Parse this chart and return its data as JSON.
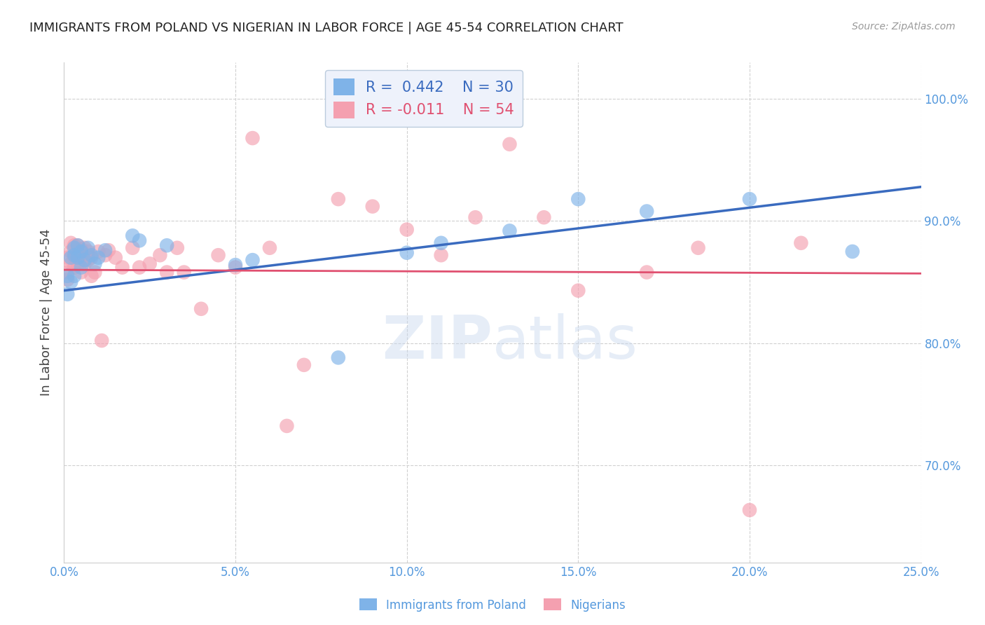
{
  "title": "IMMIGRANTS FROM POLAND VS NIGERIAN IN LABOR FORCE | AGE 45-54 CORRELATION CHART",
  "source": "Source: ZipAtlas.com",
  "ylabel": "In Labor Force | Age 45-54",
  "xlim": [
    0.0,
    0.25
  ],
  "ylim": [
    0.62,
    1.03
  ],
  "xtick_labels": [
    "0.0%",
    "5.0%",
    "10.0%",
    "15.0%",
    "20.0%",
    "25.0%"
  ],
  "xtick_vals": [
    0.0,
    0.05,
    0.1,
    0.15,
    0.2,
    0.25
  ],
  "ytick_labels": [
    "70.0%",
    "80.0%",
    "90.0%",
    "100.0%"
  ],
  "ytick_vals": [
    0.7,
    0.8,
    0.9,
    1.0
  ],
  "poland_R": 0.442,
  "poland_N": 30,
  "nigeria_R": -0.011,
  "nigeria_N": 54,
  "poland_color": "#7fb3e8",
  "nigeria_color": "#f4a0b0",
  "poland_line_color": "#3a6bbf",
  "nigeria_line_color": "#e05070",
  "grid_color": "#d0d0d0",
  "background_color": "#ffffff",
  "title_color": "#222222",
  "axis_label_color": "#444444",
  "tick_label_color": "#5599dd",
  "source_color": "#999999",
  "watermark_color": "#c8d8ee",
  "legend_box_color": "#eef2fb",
  "poland_scatter_x": [
    0.001,
    0.001,
    0.002,
    0.002,
    0.003,
    0.003,
    0.003,
    0.004,
    0.004,
    0.005,
    0.005,
    0.006,
    0.007,
    0.008,
    0.009,
    0.01,
    0.012,
    0.02,
    0.022,
    0.03,
    0.05,
    0.055,
    0.08,
    0.1,
    0.11,
    0.13,
    0.15,
    0.17,
    0.2,
    0.23
  ],
  "poland_scatter_y": [
    0.84,
    0.855,
    0.85,
    0.87,
    0.855,
    0.872,
    0.878,
    0.87,
    0.88,
    0.862,
    0.875,
    0.868,
    0.878,
    0.872,
    0.865,
    0.87,
    0.876,
    0.888,
    0.884,
    0.88,
    0.864,
    0.868,
    0.788,
    0.874,
    0.882,
    0.892,
    0.918,
    0.908,
    0.918,
    0.875
  ],
  "nigeria_scatter_x": [
    0.001,
    0.001,
    0.001,
    0.002,
    0.002,
    0.002,
    0.003,
    0.003,
    0.003,
    0.004,
    0.004,
    0.004,
    0.005,
    0.005,
    0.005,
    0.006,
    0.006,
    0.007,
    0.007,
    0.008,
    0.008,
    0.009,
    0.01,
    0.011,
    0.012,
    0.013,
    0.015,
    0.017,
    0.02,
    0.022,
    0.025,
    0.028,
    0.03,
    0.033,
    0.035,
    0.04,
    0.045,
    0.05,
    0.055,
    0.06,
    0.065,
    0.07,
    0.08,
    0.09,
    0.1,
    0.11,
    0.12,
    0.13,
    0.14,
    0.15,
    0.17,
    0.185,
    0.2,
    0.215
  ],
  "nigeria_scatter_y": [
    0.858,
    0.87,
    0.852,
    0.865,
    0.875,
    0.882,
    0.862,
    0.87,
    0.88,
    0.865,
    0.872,
    0.88,
    0.858,
    0.872,
    0.877,
    0.865,
    0.878,
    0.868,
    0.875,
    0.855,
    0.87,
    0.858,
    0.875,
    0.802,
    0.872,
    0.876,
    0.87,
    0.862,
    0.878,
    0.862,
    0.865,
    0.872,
    0.858,
    0.878,
    0.858,
    0.828,
    0.872,
    0.862,
    0.968,
    0.878,
    0.732,
    0.782,
    0.918,
    0.912,
    0.893,
    0.872,
    0.903,
    0.963,
    0.903,
    0.843,
    0.858,
    0.878,
    0.663,
    0.882
  ],
  "poland_line_x": [
    0.0,
    0.25
  ],
  "poland_line_y": [
    0.843,
    0.928
  ],
  "nigeria_line_x": [
    0.0,
    0.25
  ],
  "nigeria_line_y": [
    0.86,
    0.857
  ]
}
